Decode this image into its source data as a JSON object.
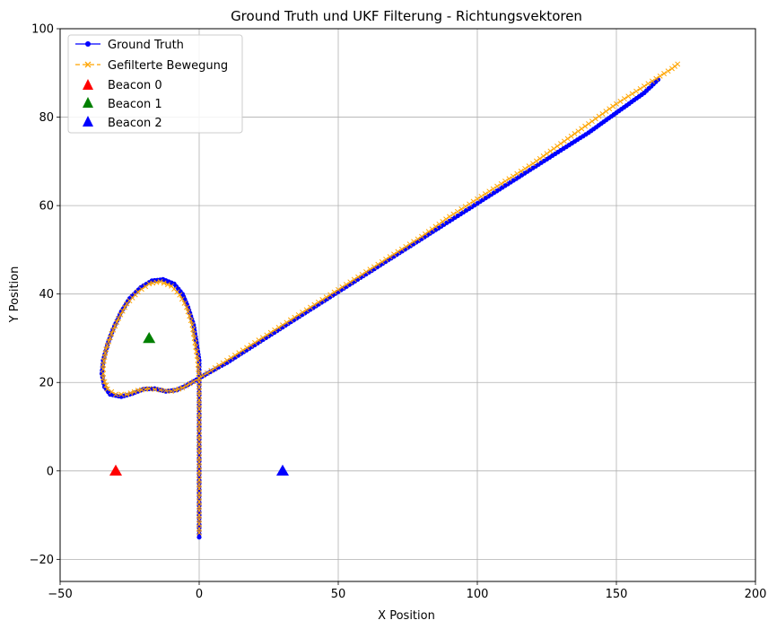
{
  "chart_data": {
    "type": "line",
    "title": "Ground Truth und UKF Filterung - Richtungsvektoren",
    "xlabel": "X Position",
    "ylabel": "Y Position",
    "xlim": [
      -50,
      200
    ],
    "ylim": [
      -25,
      100
    ],
    "xticks": [
      "−50",
      "0",
      "50",
      "100",
      "150",
      "200"
    ],
    "yticks": [
      "−20",
      "0",
      "20",
      "40",
      "60",
      "80",
      "100"
    ],
    "grid": true,
    "legend_position": "top-left",
    "series": [
      {
        "name": "Ground Truth",
        "color": "#0000ff",
        "marker": "circle",
        "line_style": "solid",
        "points": [
          [
            0,
            -15
          ],
          [
            0,
            -10
          ],
          [
            0,
            -5
          ],
          [
            0,
            0
          ],
          [
            0,
            5
          ],
          [
            0,
            10
          ],
          [
            0,
            15
          ],
          [
            0,
            20
          ],
          [
            0,
            25
          ],
          [
            -1,
            29
          ],
          [
            -2,
            33
          ],
          [
            -4,
            37
          ],
          [
            -6,
            40
          ],
          [
            -9,
            42.3
          ],
          [
            -13,
            43.3
          ],
          [
            -17,
            43
          ],
          [
            -21,
            41.5
          ],
          [
            -25,
            39
          ],
          [
            -28,
            36
          ],
          [
            -31,
            32
          ],
          [
            -33,
            28.5
          ],
          [
            -34.5,
            25
          ],
          [
            -35,
            22
          ],
          [
            -34,
            19
          ],
          [
            -32,
            17.3
          ],
          [
            -28,
            16.8
          ],
          [
            -24,
            17.5
          ],
          [
            -20,
            18.5
          ],
          [
            -16,
            18.6
          ],
          [
            -12,
            18
          ],
          [
            -8,
            18.3
          ],
          [
            -4,
            19.5
          ],
          [
            0,
            21
          ],
          [
            10,
            24.5
          ],
          [
            20,
            28.5
          ],
          [
            30,
            32.5
          ],
          [
            40,
            36.5
          ],
          [
            50,
            40.5
          ],
          [
            60,
            44.5
          ],
          [
            70,
            48.5
          ],
          [
            80,
            52.5
          ],
          [
            90,
            56.5
          ],
          [
            100,
            60.5
          ],
          [
            110,
            64.5
          ],
          [
            120,
            68.5
          ],
          [
            130,
            72.5
          ],
          [
            140,
            76.5
          ],
          [
            150,
            81
          ],
          [
            160,
            85.5
          ],
          [
            165,
            88.5
          ]
        ]
      },
      {
        "name": "Gefilterte Bewegung",
        "color": "#ffa500",
        "marker": "x",
        "line_style": "dashed",
        "points": [
          [
            0,
            -14
          ],
          [
            0,
            -10
          ],
          [
            0,
            -5
          ],
          [
            0,
            0
          ],
          [
            0,
            5
          ],
          [
            0,
            10
          ],
          [
            0,
            15
          ],
          [
            0,
            20
          ],
          [
            -0.5,
            25
          ],
          [
            -1.5,
            29
          ],
          [
            -2.5,
            33
          ],
          [
            -4.5,
            37
          ],
          [
            -7,
            39.8
          ],
          [
            -10,
            41.8
          ],
          [
            -14,
            42.8
          ],
          [
            -18,
            42.3
          ],
          [
            -22,
            40.5
          ],
          [
            -26,
            37.8
          ],
          [
            -29,
            34.5
          ],
          [
            -31.5,
            31
          ],
          [
            -33.5,
            27.5
          ],
          [
            -34.5,
            24
          ],
          [
            -34.5,
            21
          ],
          [
            -33,
            18.5
          ],
          [
            -30,
            17.3
          ],
          [
            -26,
            17.3
          ],
          [
            -22,
            18.2
          ],
          [
            -18,
            18.6
          ],
          [
            -14,
            18.3
          ],
          [
            -10,
            18
          ],
          [
            -6,
            18.8
          ],
          [
            -2,
            20.2
          ],
          [
            0,
            21
          ],
          [
            10,
            25
          ],
          [
            20,
            29
          ],
          [
            30,
            33
          ],
          [
            40,
            37
          ],
          [
            50,
            41
          ],
          [
            60,
            45
          ],
          [
            70,
            49
          ],
          [
            80,
            53
          ],
          [
            90,
            57.5
          ],
          [
            100,
            61.5
          ],
          [
            110,
            65.5
          ],
          [
            120,
            69.5
          ],
          [
            130,
            74
          ],
          [
            140,
            78.5
          ],
          [
            150,
            83
          ],
          [
            160,
            87
          ],
          [
            170,
            91
          ],
          [
            172,
            92
          ]
        ]
      }
    ],
    "beacons": [
      {
        "name": "Beacon 0",
        "x": -30,
        "y": 0,
        "color": "#ff0000",
        "marker": "triangle"
      },
      {
        "name": "Beacon 1",
        "x": -18,
        "y": 30,
        "color": "#008000",
        "marker": "triangle"
      },
      {
        "name": "Beacon 2",
        "x": 30,
        "y": 0,
        "color": "#0000ff",
        "marker": "triangle"
      }
    ]
  }
}
